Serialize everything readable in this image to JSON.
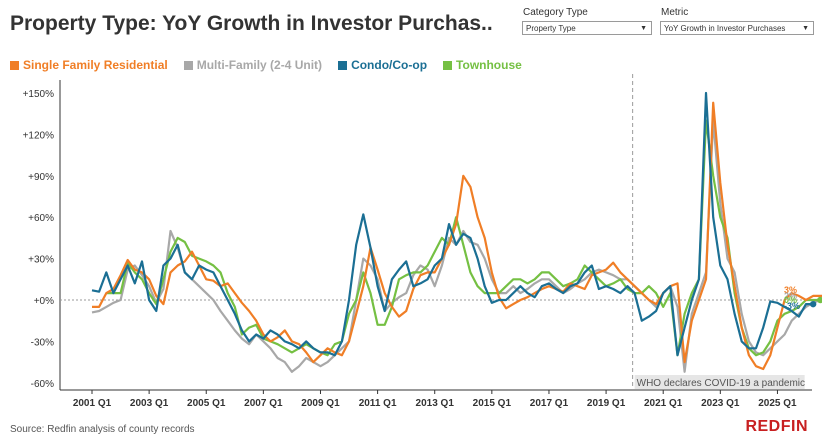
{
  "header": {
    "title": "Property Type: YoY Growth in Investor Purchas..",
    "filters": [
      {
        "label": "Category Type",
        "value": "Property Type"
      },
      {
        "label": "Metric",
        "value": "YoY Growth in Investor Purchases"
      }
    ]
  },
  "footer": {
    "source": "Source: Redfin analysis of county records",
    "brand": "REDFIN"
  },
  "chart_data": {
    "type": "line",
    "title": "Property Type: YoY Growth in Investor Purchas..",
    "xlabel": "",
    "ylabel": "",
    "ylim": [
      -60,
      150
    ],
    "y_ticks": [
      -60,
      -30,
      0,
      30,
      60,
      90,
      120,
      150
    ],
    "y_tick_labels": [
      "-60%",
      "-30%",
      "+0%",
      "+30%",
      "+60%",
      "+90%",
      "+120%",
      "+150%"
    ],
    "x_ticks": [
      "2001 Q1",
      "2003 Q1",
      "2005 Q1",
      "2007 Q1",
      "2009 Q1",
      "2011 Q1",
      "2013 Q1",
      "2015 Q1",
      "2017 Q1",
      "2019 Q1",
      "2021 Q1",
      "2023 Q1",
      "2025 Q1"
    ],
    "x_start": "2001 Q1",
    "grid": false,
    "legend_position": "top-left",
    "annotations": [
      {
        "at": "2020 Q1",
        "text": "WHO declares COVID-19 a pandemic"
      }
    ],
    "end_labels": [
      {
        "series": "Single Family Residential",
        "text": "3%"
      },
      {
        "series": "Multi-Family (2-4 Unit)",
        "text": "2%"
      },
      {
        "series": "Townhouse",
        "text": "0%"
      },
      {
        "series": "Condo/Co-op",
        "text": "-3%"
      }
    ],
    "series": [
      {
        "name": "Single Family Residential",
        "color": "#f07e26",
        "values": [
          -5,
          -5,
          5,
          8,
          18,
          29,
          22,
          20,
          15,
          3,
          -3,
          20,
          25,
          28,
          35,
          25,
          15,
          14,
          10,
          12,
          5,
          -2,
          -8,
          -15,
          -25,
          -30,
          -27,
          -22,
          -30,
          -32,
          -38,
          -45,
          -40,
          -35,
          -38,
          -40,
          -30,
          -10,
          10,
          38,
          22,
          5,
          -5,
          -12,
          -8,
          8,
          18,
          20,
          20,
          30,
          40,
          55,
          90,
          82,
          60,
          45,
          20,
          2,
          -6,
          -3,
          0,
          2,
          5,
          8,
          10,
          8,
          6,
          12,
          10,
          8,
          18,
          20,
          22,
          27,
          20,
          15,
          10,
          5,
          0,
          -3,
          5,
          10,
          12,
          -45,
          -15,
          0,
          15,
          143,
          85,
          40,
          10,
          -20,
          -40,
          -48,
          -50,
          -40,
          -20,
          0,
          5,
          3,
          0,
          3,
          3,
          3
        ]
      },
      {
        "name": "Multi-Family (2-4 Unit)",
        "color": "#a8a8a8",
        "values": [
          -9,
          -8,
          -5,
          -2,
          0,
          22,
          25,
          18,
          10,
          -2,
          8,
          50,
          38,
          20,
          15,
          10,
          5,
          0,
          -8,
          -15,
          -22,
          -28,
          -32,
          -25,
          -30,
          -35,
          -42,
          -45,
          -52,
          -48,
          -42,
          -45,
          -48,
          -45,
          -40,
          -35,
          -30,
          0,
          30,
          25,
          15,
          -8,
          -2,
          2,
          5,
          18,
          25,
          22,
          10,
          25,
          45,
          40,
          50,
          42,
          40,
          30,
          15,
          5,
          5,
          10,
          5,
          8,
          12,
          15,
          15,
          10,
          5,
          8,
          12,
          15,
          20,
          22,
          20,
          18,
          15,
          15,
          10,
          5,
          0,
          -5,
          5,
          10,
          -5,
          -52,
          -10,
          5,
          20,
          130,
          70,
          30,
          20,
          -10,
          -30,
          -38,
          -40,
          -35,
          -30,
          -25,
          -15,
          -10,
          -5,
          -2,
          0,
          2
        ]
      },
      {
        "name": "Condo/Co-op",
        "color": "#1b6f94",
        "values": [
          7,
          6,
          20,
          5,
          15,
          25,
          12,
          28,
          0,
          -8,
          25,
          30,
          40,
          20,
          15,
          25,
          22,
          20,
          10,
          0,
          -10,
          -22,
          -30,
          -25,
          -28,
          -22,
          -25,
          -30,
          -32,
          -35,
          -30,
          -35,
          -38,
          -38,
          -40,
          -30,
          0,
          40,
          62,
          38,
          10,
          -8,
          15,
          22,
          28,
          10,
          12,
          15,
          25,
          30,
          55,
          40,
          48,
          45,
          30,
          10,
          -2,
          0,
          0,
          5,
          10,
          5,
          2,
          10,
          12,
          8,
          5,
          10,
          12,
          20,
          25,
          8,
          10,
          8,
          5,
          10,
          5,
          -15,
          -12,
          -8,
          5,
          10,
          -40,
          -20,
          0,
          15,
          150,
          60,
          25,
          15,
          -10,
          -30,
          -35,
          -35,
          -20,
          -1,
          -2,
          -5,
          -8,
          -12,
          -3,
          -3
        ]
      },
      {
        "name": "Townhouse",
        "color": "#75c043",
        "values": [
          null,
          null,
          5,
          5,
          5,
          27,
          20,
          15,
          5,
          -3,
          15,
          35,
          45,
          42,
          32,
          30,
          28,
          25,
          20,
          5,
          -5,
          -25,
          -20,
          -18,
          -28,
          -30,
          -32,
          -35,
          -38,
          -35,
          -32,
          -35,
          -38,
          -40,
          -32,
          -30,
          -10,
          0,
          20,
          5,
          -18,
          -18,
          -5,
          15,
          18,
          20,
          20,
          25,
          35,
          45,
          40,
          60,
          40,
          20,
          10,
          5,
          5,
          5,
          10,
          15,
          15,
          12,
          15,
          20,
          20,
          15,
          10,
          12,
          15,
          25,
          20,
          15,
          10,
          12,
          15,
          8,
          5,
          5,
          10,
          5,
          -5,
          5,
          -40,
          -10,
          5,
          15,
          130,
          90,
          60,
          45,
          5,
          -20,
          -35,
          -40,
          -38,
          -30,
          -15,
          -10,
          -8,
          -5,
          0,
          0,
          0
        ]
      }
    ]
  }
}
